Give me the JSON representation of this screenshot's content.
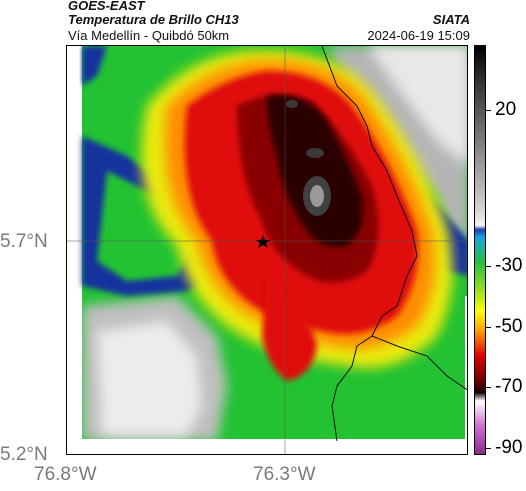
{
  "header": {
    "source": "GOES-EAST",
    "product": "Temperatura de Brillo CH13",
    "region": "Vía Medellín - Quibdó 50km",
    "organization": "SIATA",
    "datetime": "2024-06-19 15:09"
  },
  "axes": {
    "lat_ticks": [
      "5.7°N",
      "5.2°N"
    ],
    "lon_ticks": [
      "76.8°W",
      "76.3°W"
    ]
  },
  "colorbar": {
    "ticks": [
      "20",
      "-30",
      "-50",
      "-70",
      "-90"
    ]
  },
  "map": {
    "marker": "star-icon",
    "colors": {
      "cold_core": "#1a0000",
      "deep_red": "#b00000",
      "red": "#e01010",
      "orange": "#ff8a00",
      "yellow": "#f2f200",
      "green": "#20c030",
      "cyan": "#18b0e0",
      "blue": "#12309a",
      "gray": "#bdbdbd",
      "white": "#f4f4f4"
    }
  }
}
